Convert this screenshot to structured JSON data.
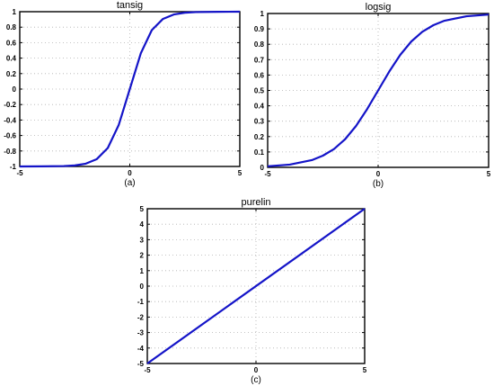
{
  "colors": {
    "line": "#1414c8",
    "axis": "#000000",
    "grid": "#b0b0b0",
    "background": "#ffffff"
  },
  "chart_data": [
    {
      "type": "line",
      "title": "tansig",
      "caption": "(a)",
      "xlabel": "",
      "ylabel": "",
      "xlim": [
        -5,
        5
      ],
      "ylim": [
        -1,
        1
      ],
      "xticks": [
        -5,
        0,
        5
      ],
      "xtick_labels": [
        "-5",
        "0",
        "5"
      ],
      "yticks": [
        -1,
        -0.8,
        -0.6,
        -0.4,
        -0.2,
        0,
        0.2,
        0.4,
        0.6,
        0.8,
        1
      ],
      "ytick_labels": [
        "-1",
        "-0.8",
        "-0.6",
        "-0.4",
        "-0.2",
        "0",
        "0.2",
        "0.4",
        "0.6",
        "0.8",
        "1"
      ],
      "grid": true,
      "x": [
        -5,
        -4,
        -3,
        -2.5,
        -2,
        -1.5,
        -1,
        -0.5,
        0,
        0.5,
        1,
        1.5,
        2,
        2.5,
        3,
        4,
        5
      ],
      "y": [
        -1.0,
        -0.999,
        -0.995,
        -0.987,
        -0.964,
        -0.905,
        -0.762,
        -0.462,
        0,
        0.462,
        0.762,
        0.905,
        0.964,
        0.987,
        0.995,
        0.999,
        1.0
      ]
    },
    {
      "type": "line",
      "title": "logsig",
      "caption": "(b)",
      "xlabel": "",
      "ylabel": "",
      "xlim": [
        -5,
        5
      ],
      "ylim": [
        0,
        1
      ],
      "xticks": [
        -5,
        0,
        5
      ],
      "xtick_labels": [
        "-5",
        "0",
        "5"
      ],
      "yticks": [
        0,
        0.1,
        0.2,
        0.3,
        0.4,
        0.5,
        0.6,
        0.7,
        0.8,
        0.9,
        1
      ],
      "ytick_labels": [
        "0",
        "0.1",
        "0.2",
        "0.3",
        "0.4",
        "0.5",
        "0.6",
        "0.7",
        "0.8",
        "0.9",
        "1"
      ],
      "grid": true,
      "x": [
        -5,
        -4,
        -3,
        -2.5,
        -2,
        -1.5,
        -1,
        -0.5,
        0,
        0.5,
        1,
        1.5,
        2,
        2.5,
        3,
        4,
        5
      ],
      "y": [
        0.007,
        0.018,
        0.047,
        0.076,
        0.119,
        0.182,
        0.269,
        0.378,
        0.5,
        0.622,
        0.731,
        0.818,
        0.881,
        0.924,
        0.953,
        0.982,
        0.993
      ]
    },
    {
      "type": "line",
      "title": "purelin",
      "caption": "(c)",
      "xlabel": "",
      "ylabel": "",
      "xlim": [
        -5,
        5
      ],
      "ylim": [
        -5,
        5
      ],
      "xticks": [
        -5,
        0,
        5
      ],
      "xtick_labels": [
        "-5",
        "0",
        "5"
      ],
      "yticks": [
        -5,
        -4,
        -3,
        -2,
        -1,
        0,
        1,
        2,
        3,
        4,
        5
      ],
      "ytick_labels": [
        "-5",
        "-4",
        "-3",
        "-2",
        "-1",
        "0",
        "1",
        "2",
        "3",
        "4",
        "5"
      ],
      "grid": true,
      "x": [
        -5,
        5
      ],
      "y": [
        -5,
        5
      ]
    }
  ]
}
